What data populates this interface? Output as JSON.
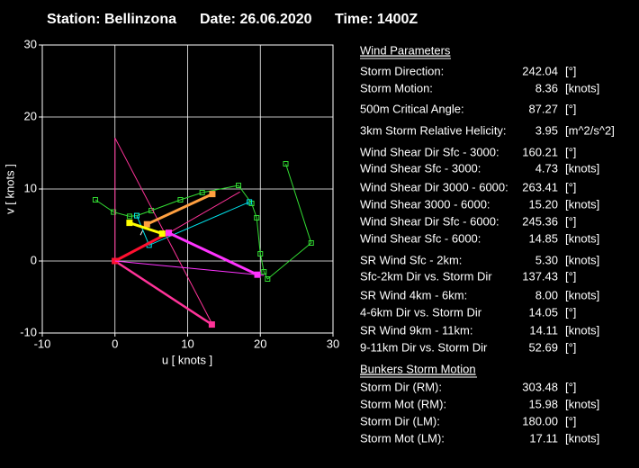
{
  "header": {
    "station": "Station: Bellinzona",
    "date": "Date: 26.06.2020",
    "time": "Time: 1400Z"
  },
  "chart_data": {
    "type": "line",
    "xlabel": "u  [ knots ]",
    "ylabel": "v  [ knots ]",
    "xlim": [
      -10,
      30
    ],
    "ylim": [
      -10,
      30
    ],
    "xticks": [
      -10,
      0,
      10,
      20,
      30
    ],
    "yticks": [
      -10,
      0,
      10,
      20,
      30
    ],
    "grid": true,
    "series": [
      {
        "color": "#33dd33",
        "width": 1,
        "markers": true,
        "x": [
          -2.7,
          -0.2,
          2,
          3,
          5,
          9,
          12,
          17,
          18.8,
          19.5,
          20,
          20.5,
          21,
          27,
          23.5
        ],
        "values": [
          8.5,
          6.8,
          6.2,
          6.3,
          7,
          8.5,
          9.5,
          10.5,
          8,
          6,
          1,
          -1.5,
          -2.5,
          2.5,
          13.5
        ]
      },
      {
        "color": "#00e5ee",
        "width": 1,
        "markers": true,
        "x": [
          3,
          4.7,
          18.5
        ],
        "values": [
          6.3,
          2.2,
          8.2
        ]
      },
      {
        "color": "#ff3399",
        "width": 1,
        "markers": false,
        "x": [
          0,
          0,
          13.4
        ],
        "values": [
          0,
          17.1,
          -8.8
        ]
      },
      {
        "color": "#ff3399",
        "width": 1,
        "markers": false,
        "x": [
          7.4,
          17.2
        ],
        "values": [
          3.9,
          9.6
        ]
      },
      {
        "color": "#ff3399",
        "width": 2.5,
        "markers": true,
        "x": [
          0,
          13.33
        ],
        "values": [
          0,
          -8.82
        ]
      },
      {
        "color": "#ff1030",
        "width": 3,
        "markers": true,
        "x": [
          0,
          7.38
        ],
        "values": [
          0,
          3.92
        ]
      },
      {
        "color": "#ff33ff",
        "width": 1,
        "markers": false,
        "x": [
          0,
          19.6,
          20.5
        ],
        "values": [
          0,
          -1.9,
          -2
        ]
      },
      {
        "color": "#ff33ff",
        "width": 3,
        "markers": true,
        "x": [
          7.4,
          19.6
        ],
        "values": [
          3.9,
          -1.9
        ]
      },
      {
        "color": "#ffa040",
        "width": 3,
        "markers": true,
        "x": [
          4.4,
          13.4
        ],
        "values": [
          5.1,
          9.3
        ]
      },
      {
        "color": "#ffff00",
        "width": 3,
        "markers": true,
        "x": [
          2,
          6.5
        ],
        "values": [
          5.3,
          3.8
        ]
      },
      {
        "color": "#ffffff",
        "width": 1,
        "markers": false,
        "x": [
          3.5,
          3.8
        ],
        "values": [
          3.6,
          4.2
        ]
      }
    ]
  },
  "panel": {
    "heading1": "Wind Parameters",
    "heading2": "Bunkers Storm Motion",
    "rows": [
      {
        "label": "Storm Direction:",
        "value": "242.04",
        "unit": "[°]",
        "color": "#ff2020"
      },
      {
        "label": "Storm Motion:",
        "value": "8.36",
        "unit": "[knots]",
        "color": "#ff2020"
      },
      {
        "label": "500m Critical Angle:",
        "value": "87.27",
        "unit": "[°]",
        "color": "#e0a0ff"
      },
      {
        "label": "3km Storm Relative Helicity:",
        "value": "3.95",
        "unit": "[m^2/s^2]",
        "color": "#33cc33"
      },
      {
        "label": "Wind Shear Dir Sfc - 3000:",
        "value": "160.21",
        "unit": "[°]",
        "color": "#00e5ee"
      },
      {
        "label": "Wind Shear Sfc - 3000:",
        "value": "4.73",
        "unit": "[knots]",
        "color": "#00e5ee"
      },
      {
        "label": "Wind Shear Dir 3000 - 6000:",
        "value": "263.41",
        "unit": "[°]",
        "color": "#00e5ee"
      },
      {
        "label": "Wind Shear 3000 - 6000:",
        "value": "15.20",
        "unit": "[knots]",
        "color": "#00e5ee"
      },
      {
        "label": "Wind Shear Dir Sfc - 6000:",
        "value": "245.36",
        "unit": "[°]",
        "color": "#00e5ee"
      },
      {
        "label": "Wind Shear Sfc - 6000:",
        "value": "14.85",
        "unit": "[knots]",
        "color": "#00e5ee"
      },
      {
        "label": "SR Wind Sfc - 2km:",
        "value": "5.30",
        "unit": "[knots]",
        "color": "#ffff00"
      },
      {
        "label": "Sfc-2km Dir vs. Storm Dir",
        "value": "137.43",
        "unit": "[°]",
        "color": "#ffff00"
      },
      {
        "label": "SR Wind 4km - 6km:",
        "value": "8.00",
        "unit": "[knots]",
        "color": "#ffa040"
      },
      {
        "label": "4-6km Dir vs. Storm Dir",
        "value": "14.05",
        "unit": "[°]",
        "color": "#ffa040"
      },
      {
        "label": "SR Wind 9km - 11km:",
        "value": "14.11",
        "unit": "[knots]",
        "color": "#ff33ff"
      },
      {
        "label": "9-11km Dir vs. Storm Dir",
        "value": "52.69",
        "unit": "[°]",
        "color": "#ff33ff"
      },
      {
        "label": "Storm Dir (RM):",
        "value": "303.48",
        "unit": "[°]",
        "color": "#ff3399"
      },
      {
        "label": "Storm Mot (RM):",
        "value": "15.98",
        "unit": "[knots]",
        "color": "#ff3399"
      },
      {
        "label": "Storm Dir (LM):",
        "value": "180.00",
        "unit": "[°]",
        "color": "#ff3399"
      },
      {
        "label": "Storm Mot (LM):",
        "value": "17.11",
        "unit": "[knots]",
        "color": "#ff3399"
      }
    ]
  }
}
